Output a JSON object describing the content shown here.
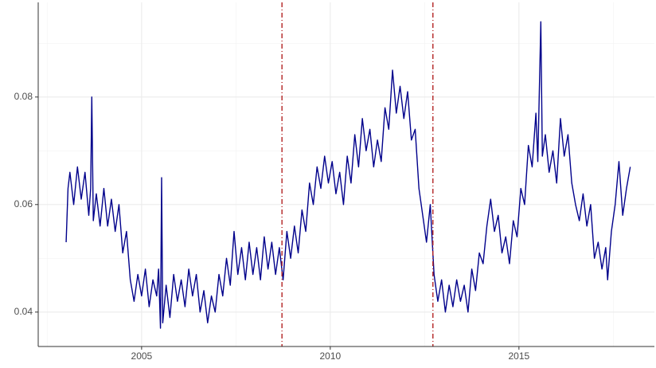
{
  "chart_data": {
    "type": "line",
    "x": [
      2003.0,
      2003.05,
      2003.1,
      2003.2,
      2003.3,
      2003.4,
      2003.5,
      2003.6,
      2003.65,
      2003.68,
      2003.72,
      2003.8,
      2003.9,
      2004.0,
      2004.1,
      2004.2,
      2004.3,
      2004.4,
      2004.5,
      2004.6,
      2004.7,
      2004.8,
      2004.9,
      2005.0,
      2005.1,
      2005.2,
      2005.3,
      2005.4,
      2005.45,
      2005.5,
      2005.53,
      2005.56,
      2005.65,
      2005.75,
      2005.85,
      2005.95,
      2006.05,
      2006.15,
      2006.25,
      2006.35,
      2006.45,
      2006.55,
      2006.65,
      2006.75,
      2006.85,
      2006.95,
      2007.05,
      2007.15,
      2007.25,
      2007.35,
      2007.45,
      2007.55,
      2007.65,
      2007.75,
      2007.85,
      2007.95,
      2008.05,
      2008.15,
      2008.25,
      2008.35,
      2008.45,
      2008.55,
      2008.65,
      2008.75,
      2008.85,
      2008.95,
      2009.05,
      2009.15,
      2009.25,
      2009.35,
      2009.45,
      2009.55,
      2009.65,
      2009.75,
      2009.85,
      2009.95,
      2010.05,
      2010.15,
      2010.25,
      2010.35,
      2010.45,
      2010.55,
      2010.65,
      2010.75,
      2010.85,
      2010.95,
      2011.05,
      2011.15,
      2011.25,
      2011.35,
      2011.45,
      2011.55,
      2011.65,
      2011.75,
      2011.85,
      2011.95,
      2012.05,
      2012.15,
      2012.25,
      2012.35,
      2012.45,
      2012.55,
      2012.65,
      2012.75,
      2012.85,
      2012.95,
      2013.05,
      2013.15,
      2013.25,
      2013.35,
      2013.45,
      2013.55,
      2013.65,
      2013.75,
      2013.85,
      2013.95,
      2014.05,
      2014.15,
      2014.25,
      2014.35,
      2014.45,
      2014.55,
      2014.65,
      2014.75,
      2014.85,
      2014.95,
      2015.05,
      2015.15,
      2015.25,
      2015.35,
      2015.45,
      2015.5,
      2015.58,
      2015.62,
      2015.7,
      2015.8,
      2015.9,
      2016.0,
      2016.1,
      2016.2,
      2016.3,
      2016.4,
      2016.5,
      2016.6,
      2016.7,
      2016.8,
      2016.9,
      2017.0,
      2017.1,
      2017.2,
      2017.3,
      2017.35,
      2017.45,
      2017.55,
      2017.65,
      2017.75,
      2017.85,
      2017.95
    ],
    "series": [
      {
        "color": "#00008b",
        "values": [
          0.053,
          0.063,
          0.066,
          0.06,
          0.067,
          0.061,
          0.066,
          0.058,
          0.063,
          0.08,
          0.057,
          0.062,
          0.056,
          0.063,
          0.056,
          0.061,
          0.055,
          0.06,
          0.051,
          0.055,
          0.046,
          0.042,
          0.047,
          0.043,
          0.048,
          0.041,
          0.046,
          0.043,
          0.048,
          0.037,
          0.065,
          0.038,
          0.045,
          0.039,
          0.047,
          0.042,
          0.046,
          0.041,
          0.048,
          0.043,
          0.047,
          0.04,
          0.044,
          0.038,
          0.043,
          0.04,
          0.047,
          0.043,
          0.05,
          0.045,
          0.055,
          0.047,
          0.052,
          0.046,
          0.053,
          0.047,
          0.052,
          0.046,
          0.054,
          0.048,
          0.053,
          0.047,
          0.052,
          0.046,
          0.055,
          0.05,
          0.056,
          0.051,
          0.059,
          0.055,
          0.064,
          0.06,
          0.067,
          0.063,
          0.069,
          0.064,
          0.068,
          0.062,
          0.066,
          0.06,
          0.069,
          0.064,
          0.073,
          0.067,
          0.076,
          0.07,
          0.074,
          0.067,
          0.072,
          0.068,
          0.078,
          0.074,
          0.085,
          0.077,
          0.082,
          0.076,
          0.081,
          0.072,
          0.074,
          0.063,
          0.058,
          0.053,
          0.06,
          0.047,
          0.042,
          0.046,
          0.04,
          0.045,
          0.041,
          0.046,
          0.042,
          0.045,
          0.04,
          0.048,
          0.044,
          0.051,
          0.049,
          0.056,
          0.061,
          0.055,
          0.058,
          0.051,
          0.054,
          0.049,
          0.057,
          0.054,
          0.063,
          0.06,
          0.071,
          0.067,
          0.077,
          0.068,
          0.094,
          0.069,
          0.073,
          0.066,
          0.07,
          0.064,
          0.076,
          0.069,
          0.073,
          0.064,
          0.06,
          0.057,
          0.062,
          0.056,
          0.06,
          0.05,
          0.053,
          0.048,
          0.052,
          0.046,
          0.055,
          0.06,
          0.068,
          0.058,
          0.063,
          0.067
        ]
      }
    ],
    "vlines": [
      2008.72,
      2012.72
    ],
    "vline_color": "#b22222",
    "xlim": [
      2002.26,
      2018.59
    ],
    "ylim": [
      0.0336,
      0.0976
    ],
    "xticks": [
      2005,
      2010,
      2015
    ],
    "yticks": [
      0.04,
      0.06,
      0.08
    ],
    "minor_xticks": [
      2002.5,
      2007.5,
      2012.5,
      2017.5
    ],
    "minor_yticks": [
      0.05,
      0.07,
      0.09
    ],
    "grid": true
  }
}
